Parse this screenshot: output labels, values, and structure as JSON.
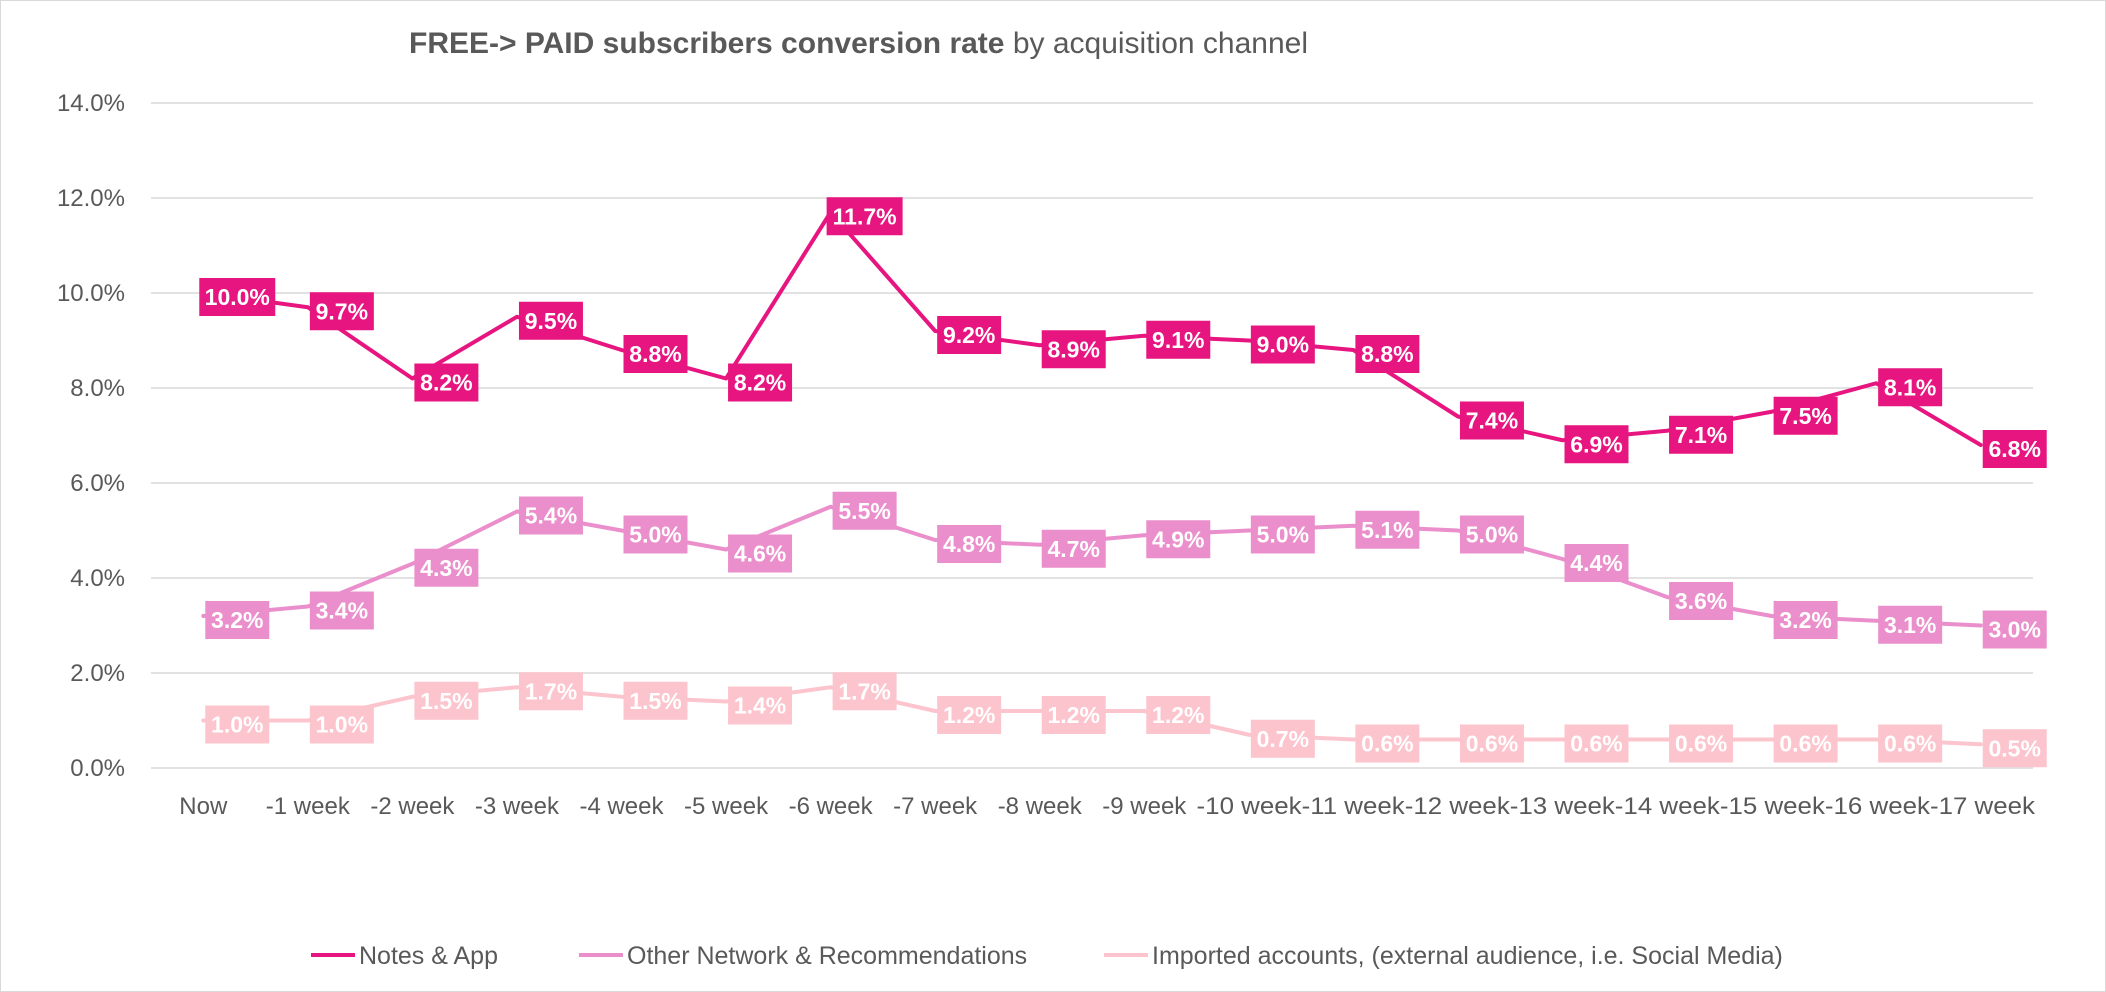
{
  "chart_data": {
    "type": "line",
    "title_bold": "FREE-> PAID subscribers conversion rate",
    "title_regular": " by acquisition channel",
    "xlabel": "",
    "ylabel": "",
    "ylim": [
      0,
      14
    ],
    "yticks": [
      "0.0%",
      "2.0%",
      "4.0%",
      "6.0%",
      "8.0%",
      "10.0%",
      "12.0%",
      "14.0%"
    ],
    "grid": true,
    "legend_position": "bottom",
    "categories": [
      "Now",
      "-1 week",
      "-2 week",
      "-3 week",
      "-4 week",
      "-5 week",
      "-6 week",
      "-7 week",
      "-8 week",
      "-9 week",
      "-10 week",
      "-11 week",
      "-12 week",
      "-13 week",
      "-14 week",
      "-15 week",
      "-16 week",
      "-17 week"
    ],
    "x_axis_text": [
      "Now",
      "-1 week",
      "-2 week",
      "-3 week",
      "-4 week",
      "-5 week",
      "-6 week",
      "-7 week",
      "-8 week",
      "-9 week",
      "-10 week-11 week-12 week-13 week-14 week-15 week-16 week-17 week"
    ],
    "series": [
      {
        "name": "Notes & App",
        "color": "#e7157f",
        "values": [
          10.0,
          9.7,
          8.2,
          9.5,
          8.8,
          8.2,
          11.7,
          9.2,
          8.9,
          9.1,
          9.0,
          8.8,
          7.4,
          6.9,
          7.1,
          7.5,
          8.1,
          6.8
        ],
        "labels": [
          "10.0%",
          "9.7%",
          "8.2%",
          "9.5%",
          "8.8%",
          "8.2%",
          "11.7%",
          "9.2%",
          "8.9%",
          "9.1%",
          "9.0%",
          "8.8%",
          "7.4%",
          "6.9%",
          "7.1%",
          "7.5%",
          "8.1%",
          "6.8%"
        ]
      },
      {
        "name": "Other Network & Recommendations",
        "color": "#ea8fcb",
        "values": [
          3.2,
          3.4,
          4.3,
          5.4,
          5.0,
          4.6,
          5.5,
          4.8,
          4.7,
          4.9,
          5.0,
          5.1,
          5.0,
          4.4,
          3.6,
          3.2,
          3.1,
          3.0
        ],
        "labels": [
          "3.2%",
          "3.4%",
          "4.3%",
          "5.4%",
          "5.0%",
          "4.6%",
          "5.5%",
          "4.8%",
          "4.7%",
          "4.9%",
          "5.0%",
          "5.1%",
          "5.0%",
          "4.4%",
          "3.6%",
          "3.2%",
          "3.1%",
          "3.0%"
        ]
      },
      {
        "name": "Imported accounts, (external audience, i.e. Social Media)",
        "color": "#fcc4cd",
        "values": [
          1.0,
          1.0,
          1.5,
          1.7,
          1.5,
          1.4,
          1.7,
          1.2,
          1.2,
          1.2,
          0.7,
          0.6,
          0.6,
          0.6,
          0.6,
          0.6,
          0.6,
          0.5
        ],
        "labels": [
          "1.0%",
          "1.0%",
          "1.5%",
          "1.7%",
          "1.5%",
          "1.4%",
          "1.7%",
          "1.2%",
          "1.2%",
          "1.2%",
          "0.7%",
          "0.6%",
          "0.6%",
          "0.6%",
          "0.6%",
          "0.6%",
          "0.6%",
          "0.5%"
        ]
      }
    ]
  }
}
